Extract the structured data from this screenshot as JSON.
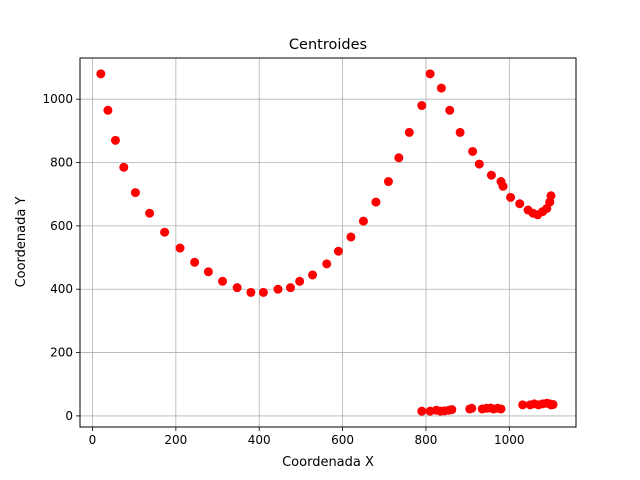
{
  "chart_data": {
    "type": "scatter",
    "title": "Centroides",
    "xlabel": "Coordenada X",
    "ylabel": "Coordenada Y",
    "xlim": [
      -30,
      1160
    ],
    "ylim": [
      -35,
      1130
    ],
    "x_ticks": [
      0,
      200,
      400,
      600,
      800,
      1000
    ],
    "y_ticks": [
      0,
      200,
      400,
      600,
      800,
      1000
    ],
    "grid": true,
    "colors": {
      "points": "#ff0000",
      "grid": "#b0b0b0",
      "axes": "#000000"
    },
    "x": [
      20,
      37,
      55,
      75,
      103,
      137,
      173,
      210,
      245,
      278,
      312,
      347,
      380,
      410,
      445,
      475,
      497,
      528,
      562,
      590,
      620,
      650,
      680,
      710,
      735,
      760,
      790,
      810,
      837,
      857,
      882,
      912,
      928,
      957,
      980,
      985,
      1003,
      1025,
      1045,
      1057,
      1068,
      1080,
      1090,
      1097,
      1100,
      790,
      810,
      825,
      835,
      845,
      855,
      862,
      905,
      910,
      935,
      945,
      955,
      962,
      972,
      980,
      1032,
      1050,
      1060,
      1070,
      1080,
      1090,
      1097,
      1100,
      1105
    ],
    "y": [
      1080,
      965,
      870,
      785,
      705,
      640,
      580,
      530,
      485,
      455,
      425,
      405,
      390,
      390,
      400,
      405,
      425,
      445,
      480,
      520,
      565,
      615,
      675,
      740,
      815,
      895,
      980,
      1080,
      1035,
      965,
      895,
      835,
      795,
      760,
      740,
      725,
      690,
      670,
      650,
      640,
      635,
      645,
      655,
      675,
      695,
      15,
      15,
      18,
      15,
      16,
      18,
      20,
      22,
      24,
      22,
      24,
      25,
      22,
      24,
      22,
      35,
      35,
      38,
      35,
      38,
      40,
      38,
      35,
      36
    ]
  }
}
